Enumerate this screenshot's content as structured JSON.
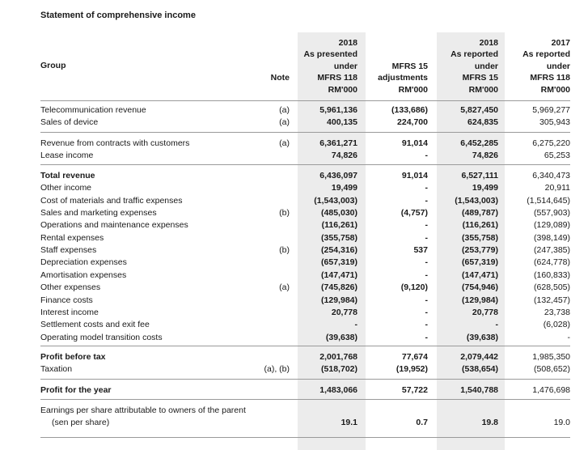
{
  "title": "Statement of comprehensive income",
  "header": {
    "group": "Group",
    "note": "Note",
    "columns": [
      [
        "2018",
        "As presented",
        "under",
        "MFRS 118",
        "RM'000"
      ],
      [
        "MFRS 15",
        "adjustments",
        "RM'000"
      ],
      [
        "2018",
        "As reported",
        "under",
        "MFRS 15",
        "RM'000"
      ],
      [
        "2017",
        "As reported",
        "under",
        "MFRS 118",
        "RM'000"
      ]
    ]
  },
  "sections": [
    {
      "rows": [
        {
          "label": "Telecommunication revenue",
          "note": "(a)",
          "values": [
            "5,961,136",
            "(133,686)",
            "5,827,450",
            "5,969,277"
          ]
        },
        {
          "label": "Sales of device",
          "note": "(a)",
          "values": [
            "400,135",
            "224,700",
            "624,835",
            "305,943"
          ]
        }
      ]
    },
    {
      "rows": [
        {
          "label": "Revenue from contracts with customers",
          "note": "(a)",
          "values": [
            "6,361,271",
            "91,014",
            "6,452,285",
            "6,275,220"
          ]
        },
        {
          "label": "Lease income",
          "note": null,
          "values": [
            "74,826",
            "-",
            "74,826",
            "65,253"
          ]
        }
      ]
    },
    {
      "rows": [
        {
          "label": "Total revenue",
          "note": null,
          "bold": true,
          "values": [
            "6,436,097",
            "91,014",
            "6,527,111",
            "6,340,473"
          ]
        },
        {
          "label": "Other income",
          "note": null,
          "values": [
            "19,499",
            "-",
            "19,499",
            "20,911"
          ]
        },
        {
          "label": "Cost of materials and traffic expenses",
          "note": null,
          "values": [
            "(1,543,003)",
            "-",
            "(1,543,003)",
            "(1,514,645)"
          ]
        },
        {
          "label": "Sales and marketing expenses",
          "note": "(b)",
          "values": [
            "(485,030)",
            "(4,757)",
            "(489,787)",
            "(557,903)"
          ]
        },
        {
          "label": "Operations and maintenance expenses",
          "note": null,
          "values": [
            "(116,261)",
            "-",
            "(116,261)",
            "(129,089)"
          ]
        },
        {
          "label": "Rental expenses",
          "note": null,
          "values": [
            "(355,758)",
            "-",
            "(355,758)",
            "(398,149)"
          ]
        },
        {
          "label": "Staff expenses",
          "note": "(b)",
          "values": [
            "(254,316)",
            "537",
            "(253,779)",
            "(247,385)"
          ]
        },
        {
          "label": "Depreciation expenses",
          "note": null,
          "values": [
            "(657,319)",
            "-",
            "(657,319)",
            "(624,778)"
          ]
        },
        {
          "label": "Amortisation expenses",
          "note": null,
          "values": [
            "(147,471)",
            "-",
            "(147,471)",
            "(160,833)"
          ]
        },
        {
          "label": "Other expenses",
          "note": "(a)",
          "values": [
            "(745,826)",
            "(9,120)",
            "(754,946)",
            "(628,505)"
          ]
        },
        {
          "label": "Finance costs",
          "note": null,
          "values": [
            "(129,984)",
            "-",
            "(129,984)",
            "(132,457)"
          ]
        },
        {
          "label": "Interest income",
          "note": null,
          "values": [
            "20,778",
            "-",
            "20,778",
            "23,738"
          ]
        },
        {
          "label": "Settlement costs and exit fee",
          "note": null,
          "values": [
            "-",
            "-",
            "-",
            "(6,028)"
          ]
        },
        {
          "label": "Operating model transition costs",
          "note": null,
          "values": [
            "(39,638)",
            "-",
            "(39,638)",
            "-"
          ]
        }
      ]
    },
    {
      "rows": [
        {
          "label": "Profit before tax",
          "note": null,
          "bold": true,
          "values": [
            "2,001,768",
            "77,674",
            "2,079,442",
            "1,985,350"
          ]
        },
        {
          "label": "Taxation",
          "note": "(a), (b)",
          "values": [
            "(518,702)",
            "(19,952)",
            "(538,654)",
            "(508,652)"
          ]
        }
      ]
    },
    {
      "rows": [
        {
          "label": "Profit for the year",
          "note": null,
          "bold": true,
          "values": [
            "1,483,066",
            "57,722",
            "1,540,788",
            "1,476,698"
          ]
        }
      ]
    },
    {
      "rows": [
        {
          "label": "Earnings per share attributable to owners of the parent (sen per share)",
          "note": null,
          "values": [
            "19.1",
            "0.7",
            "19.8",
            "19.0"
          ]
        }
      ]
    }
  ]
}
